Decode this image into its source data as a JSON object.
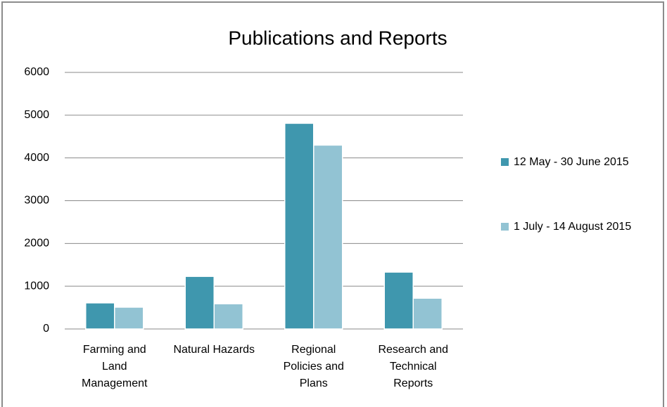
{
  "chart_data": {
    "type": "bar",
    "title": "Publications and Reports",
    "categories": [
      "Farming and Land Management",
      "Natural Hazards",
      "Regional Policies and Plans",
      "Research and Technical Reports"
    ],
    "series": [
      {
        "name": "12 May - 30 June 2015",
        "color": "#3f97ae",
        "values": [
          610,
          1230,
          4810,
          1330
        ]
      },
      {
        "name": "1 July - 14 August 2015",
        "color": "#92c3d3",
        "values": [
          510,
          590,
          4300,
          720
        ]
      }
    ],
    "ylim": [
      0,
      6000
    ],
    "yticks": [
      0,
      1000,
      2000,
      3000,
      4000,
      5000,
      6000
    ],
    "grid": true,
    "legend": "right"
  }
}
